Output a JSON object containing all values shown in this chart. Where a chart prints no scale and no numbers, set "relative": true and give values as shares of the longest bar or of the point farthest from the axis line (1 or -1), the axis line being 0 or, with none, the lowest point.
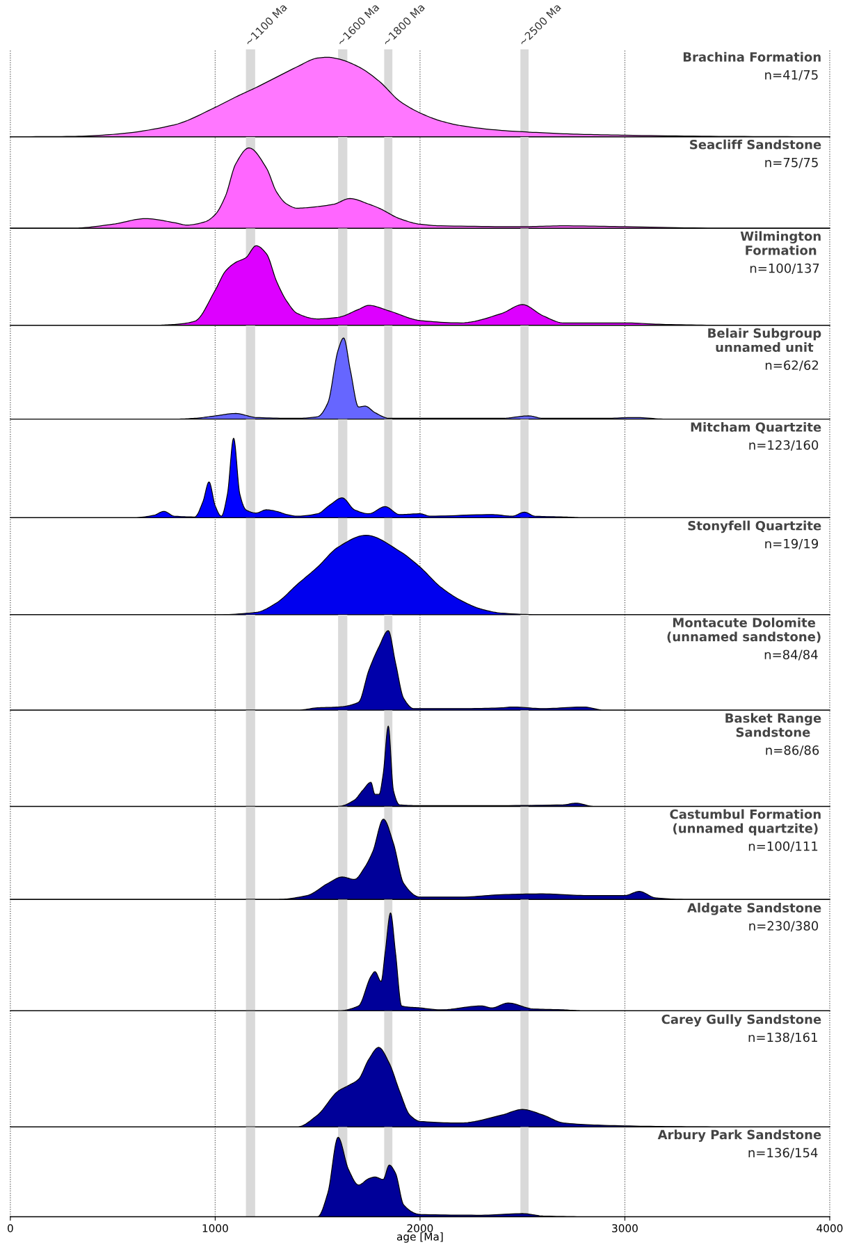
{
  "chart_data": [
    {
      "type": "area",
      "relative": true,
      "title": "Brachina Formation",
      "annotations": [
        "n=41/75"
      ],
      "color": "#ff77ff",
      "x": [
        0,
        300,
        500,
        800,
        1000,
        1100,
        1200,
        1300,
        1400,
        1500,
        1550,
        1600,
        1700,
        1800,
        1900,
        2000,
        2100,
        2200,
        2400,
        2600,
        2800,
        3000,
        3500,
        4000
      ],
      "values": [
        0,
        0.005,
        0.03,
        0.15,
        0.37,
        0.5,
        0.62,
        0.75,
        0.88,
        0.99,
        1.0,
        0.98,
        0.88,
        0.7,
        0.45,
        0.3,
        0.2,
        0.14,
        0.08,
        0.05,
        0.03,
        0.02,
        0.005,
        0
      ],
      "xlim": [
        0,
        4000
      ],
      "xticks": [
        0,
        1000,
        2000,
        3000,
        4000
      ],
      "tick_labels": false,
      "grid": "x",
      "bands": [
        {
          "axis": "x",
          "from": 1150,
          "to": 1195,
          "label": "~1100 Ma",
          "color": "#d9d9d9"
        },
        {
          "axis": "x",
          "from": 1600,
          "to": 1645,
          "label": "~1600 Ma",
          "color": "#d9d9d9"
        },
        {
          "axis": "x",
          "from": 1825,
          "to": 1865,
          "label": "~1800 Ma",
          "color": "#d9d9d9"
        },
        {
          "axis": "x",
          "from": 2490,
          "to": 2530,
          "label": "~2500 Ma",
          "color": "#d9d9d9"
        }
      ]
    },
    {
      "type": "area",
      "relative": true,
      "title": "Seacliff Sandstone",
      "annotations": [
        "n=75/75"
      ],
      "color": "#ff66ff",
      "x": [
        0,
        300,
        500,
        660,
        800,
        862,
        950,
        1000,
        1050,
        1100,
        1165,
        1250,
        1300,
        1350,
        1400,
        1500,
        1580,
        1658,
        1750,
        1800,
        1900,
        2000,
        2100,
        2500,
        2700,
        3000,
        3500,
        4000
      ],
      "values": [
        0,
        0.0,
        0.05,
        0.12,
        0.07,
        0.04,
        0.08,
        0.17,
        0.4,
        0.8,
        1.0,
        0.75,
        0.45,
        0.3,
        0.25,
        0.27,
        0.3,
        0.37,
        0.3,
        0.25,
        0.12,
        0.05,
        0.03,
        0.02,
        0.03,
        0.02,
        0.0,
        0
      ],
      "xlim": [
        0,
        4000
      ],
      "xticks": [
        0,
        1000,
        2000,
        3000,
        4000
      ],
      "tick_labels": false,
      "grid": "x",
      "bands": [
        {
          "axis": "x",
          "from": 1150,
          "to": 1195,
          "color": "#d9d9d9"
        },
        {
          "axis": "x",
          "from": 1600,
          "to": 1645,
          "color": "#d9d9d9"
        },
        {
          "axis": "x",
          "from": 1825,
          "to": 1865,
          "color": "#d9d9d9"
        },
        {
          "axis": "x",
          "from": 2490,
          "to": 2530,
          "color": "#d9d9d9"
        }
      ]
    },
    {
      "type": "area",
      "relative": true,
      "title": "Wilmington\nFormation",
      "annotations": [
        "n=100/137"
      ],
      "color": "#dd00ff",
      "x": [
        0,
        700,
        800,
        900,
        1000,
        1050,
        1100,
        1150,
        1200,
        1250,
        1300,
        1350,
        1400,
        1500,
        1600,
        1700,
        1750,
        1850,
        2000,
        2200,
        2400,
        2500,
        2600,
        2700,
        2900,
        3000,
        3200,
        3500,
        4000
      ],
      "values": [
        0,
        0,
        0.01,
        0.05,
        0.44,
        0.68,
        0.79,
        0.85,
        1.0,
        0.9,
        0.55,
        0.3,
        0.15,
        0.08,
        0.1,
        0.2,
        0.25,
        0.18,
        0.06,
        0.03,
        0.15,
        0.26,
        0.12,
        0.03,
        0.03,
        0.03,
        0.01,
        0,
        0
      ],
      "xlim": [
        0,
        4000
      ],
      "xticks": [
        0,
        1000,
        2000,
        3000,
        4000
      ],
      "tick_labels": false,
      "grid": "x",
      "bands": [
        {
          "axis": "x",
          "from": 1150,
          "to": 1195,
          "color": "#d9d9d9"
        },
        {
          "axis": "x",
          "from": 1600,
          "to": 1645,
          "color": "#d9d9d9"
        },
        {
          "axis": "x",
          "from": 1825,
          "to": 1865,
          "color": "#d9d9d9"
        },
        {
          "axis": "x",
          "from": 2490,
          "to": 2530,
          "color": "#d9d9d9"
        }
      ]
    },
    {
      "type": "area",
      "relative": true,
      "title": "Belair Subgroup\nunnamed unit",
      "annotations": [
        "n=62/62"
      ],
      "color": "#6666ff",
      "x": [
        0,
        800,
        900,
        1000,
        1100,
        1200,
        1400,
        1500,
        1550,
        1600,
        1627,
        1660,
        1700,
        1732,
        1780,
        1850,
        2000,
        2400,
        2530,
        2600,
        2900,
        3050,
        3200,
        4000
      ],
      "values": [
        0,
        0,
        0.01,
        0.04,
        0.07,
        0.02,
        0.01,
        0.03,
        0.2,
        0.85,
        1.0,
        0.6,
        0.15,
        0.16,
        0.08,
        0.01,
        0.01,
        0.01,
        0.04,
        0.01,
        0.01,
        0.02,
        0,
        0
      ],
      "xlim": [
        0,
        4000
      ],
      "xticks": [
        0,
        1000,
        2000,
        3000,
        4000
      ],
      "tick_labels": false,
      "grid": "x",
      "bands": [
        {
          "axis": "x",
          "from": 1150,
          "to": 1195,
          "color": "#d9d9d9"
        },
        {
          "axis": "x",
          "from": 1600,
          "to": 1645,
          "color": "#d9d9d9"
        },
        {
          "axis": "x",
          "from": 1825,
          "to": 1865,
          "color": "#d9d9d9"
        },
        {
          "axis": "x",
          "from": 2490,
          "to": 2530,
          "color": "#d9d9d9"
        }
      ]
    },
    {
      "type": "area",
      "relative": true,
      "title": "Mitcham Quartzite",
      "annotations": [
        "n=123/160"
      ],
      "color": "#0000ff",
      "x": [
        0,
        600,
        700,
        750,
        800,
        900,
        940,
        970,
        1000,
        1030,
        1060,
        1090,
        1120,
        1150,
        1200,
        1250,
        1300,
        1350,
        1400,
        1500,
        1560,
        1620,
        1680,
        1750,
        1830,
        1900,
        2000,
        2050,
        2350,
        2450,
        2510,
        2560,
        2700,
        2800,
        4000
      ],
      "values": [
        0,
        0,
        0.03,
        0.08,
        0.02,
        0.01,
        0.2,
        0.45,
        0.15,
        0.02,
        0.3,
        1.0,
        0.3,
        0.1,
        0.06,
        0.1,
        0.08,
        0.04,
        0.02,
        0.05,
        0.16,
        0.25,
        0.1,
        0.05,
        0.14,
        0.04,
        0.05,
        0.02,
        0.04,
        0.02,
        0.07,
        0.02,
        0.01,
        0,
        0
      ],
      "xlim": [
        0,
        4000
      ],
      "xticks": [
        0,
        1000,
        2000,
        3000,
        4000
      ],
      "tick_labels": false,
      "grid": "x",
      "bands": [
        {
          "axis": "x",
          "from": 1150,
          "to": 1195,
          "color": "#d9d9d9"
        },
        {
          "axis": "x",
          "from": 1600,
          "to": 1645,
          "color": "#d9d9d9"
        },
        {
          "axis": "x",
          "from": 1825,
          "to": 1865,
          "color": "#d9d9d9"
        },
        {
          "axis": "x",
          "from": 2490,
          "to": 2530,
          "color": "#d9d9d9"
        }
      ]
    },
    {
      "type": "area",
      "relative": true,
      "title": "Stonyfell Quartzite",
      "annotations": [
        "n=19/19"
      ],
      "color": "#0000ee",
      "x": [
        0,
        1000,
        1200,
        1300,
        1400,
        1500,
        1600,
        1736,
        1900,
        2000,
        2100,
        2200,
        2300,
        2400,
        2600,
        4000
      ],
      "values": [
        0,
        0,
        0.03,
        0.15,
        0.38,
        0.6,
        0.85,
        1.0,
        0.8,
        0.6,
        0.35,
        0.18,
        0.07,
        0.02,
        0,
        0
      ],
      "xlim": [
        0,
        4000
      ],
      "xticks": [
        0,
        1000,
        2000,
        3000,
        4000
      ],
      "tick_labels": false,
      "grid": "x",
      "bands": [
        {
          "axis": "x",
          "from": 1150,
          "to": 1195,
          "color": "#d9d9d9"
        },
        {
          "axis": "x",
          "from": 1600,
          "to": 1645,
          "color": "#d9d9d9"
        },
        {
          "axis": "x",
          "from": 1825,
          "to": 1865,
          "color": "#d9d9d9"
        },
        {
          "axis": "x",
          "from": 2490,
          "to": 2530,
          "color": "#d9d9d9"
        }
      ]
    },
    {
      "type": "area",
      "relative": true,
      "title": "Montacute Dolomite\n(unnamed sandstone)",
      "annotations": [
        "n=84/84"
      ],
      "color": "#0000aa",
      "x": [
        0,
        1400,
        1500,
        1600,
        1700,
        1750,
        1800,
        1845,
        1880,
        1920,
        1970,
        2200,
        2400,
        2450,
        2600,
        2800,
        2900,
        4000
      ],
      "values": [
        0,
        0,
        0.03,
        0.04,
        0.1,
        0.5,
        0.8,
        1.0,
        0.6,
        0.15,
        0.02,
        0.02,
        0.03,
        0.04,
        0.02,
        0.04,
        0,
        0
      ],
      "xlim": [
        0,
        4000
      ],
      "xticks": [
        0,
        1000,
        2000,
        3000,
        4000
      ],
      "tick_labels": false,
      "grid": "x",
      "bands": [
        {
          "axis": "x",
          "from": 1150,
          "to": 1195,
          "color": "#d9d9d9"
        },
        {
          "axis": "x",
          "from": 1600,
          "to": 1645,
          "color": "#d9d9d9"
        },
        {
          "axis": "x",
          "from": 1825,
          "to": 1865,
          "color": "#d9d9d9"
        },
        {
          "axis": "x",
          "from": 2490,
          "to": 2530,
          "color": "#d9d9d9"
        }
      ]
    },
    {
      "type": "area",
      "relative": true,
      "title": "Basket Range\nSandstone",
      "annotations": [
        "n=86/86"
      ],
      "color": "#000099",
      "x": [
        0,
        1600,
        1680,
        1720,
        1760,
        1780,
        1800,
        1820,
        1845,
        1870,
        1900,
        2000,
        2300,
        2700,
        2760,
        2850,
        4000
      ],
      "values": [
        0,
        0,
        0.08,
        0.2,
        0.3,
        0.15,
        0.15,
        0.4,
        1.0,
        0.2,
        0.02,
        0.01,
        0.01,
        0.02,
        0.04,
        0,
        0
      ],
      "xlim": [
        0,
        4000
      ],
      "xticks": [
        0,
        1000,
        2000,
        3000,
        4000
      ],
      "tick_labels": false,
      "grid": "x",
      "bands": [
        {
          "axis": "x",
          "from": 1150,
          "to": 1195,
          "color": "#d9d9d9"
        },
        {
          "axis": "x",
          "from": 1600,
          "to": 1645,
          "color": "#d9d9d9"
        },
        {
          "axis": "x",
          "from": 1825,
          "to": 1865,
          "color": "#d9d9d9"
        },
        {
          "axis": "x",
          "from": 2490,
          "to": 2530,
          "color": "#d9d9d9"
        }
      ]
    },
    {
      "type": "area",
      "relative": true,
      "title": "Castumbul Formation\n(unnamed quartzite)",
      "annotations": [
        "n=100/111"
      ],
      "color": "#000099",
      "x": [
        0,
        1300,
        1450,
        1550,
        1620,
        1680,
        1730,
        1770,
        1821,
        1870,
        1920,
        2000,
        2200,
        2400,
        2600,
        2800,
        3000,
        3070,
        3150,
        3300,
        4000
      ],
      "values": [
        0,
        0,
        0.05,
        0.2,
        0.28,
        0.25,
        0.4,
        0.6,
        1.0,
        0.7,
        0.2,
        0.03,
        0.03,
        0.06,
        0.07,
        0.05,
        0.05,
        0.1,
        0.02,
        0,
        0
      ],
      "xlim": [
        0,
        4000
      ],
      "xticks": [
        0,
        1000,
        2000,
        3000,
        4000
      ],
      "tick_labels": false,
      "grid": "x",
      "bands": [
        {
          "axis": "x",
          "from": 1150,
          "to": 1195,
          "color": "#d9d9d9"
        },
        {
          "axis": "x",
          "from": 1600,
          "to": 1645,
          "color": "#d9d9d9"
        },
        {
          "axis": "x",
          "from": 1825,
          "to": 1865,
          "color": "#d9d9d9"
        },
        {
          "axis": "x",
          "from": 2490,
          "to": 2530,
          "color": "#d9d9d9"
        }
      ]
    },
    {
      "type": "area",
      "relative": true,
      "title": "Aldgate Sandstone",
      "annotations": [
        "n=230/380"
      ],
      "color": "#000099",
      "x": [
        0,
        1600,
        1700,
        1760,
        1780,
        1810,
        1830,
        1856,
        1880,
        1910,
        2000,
        2100,
        2300,
        2350,
        2430,
        2550,
        2700,
        2800,
        4000
      ],
      "values": [
        0,
        0,
        0.05,
        0.35,
        0.4,
        0.3,
        0.6,
        1.0,
        0.6,
        0.05,
        0.03,
        0.01,
        0.05,
        0.03,
        0.08,
        0.02,
        0.01,
        0,
        0
      ],
      "xlim": [
        0,
        4000
      ],
      "xticks": [
        0,
        1000,
        2000,
        3000,
        4000
      ],
      "tick_labels": false,
      "grid": "x",
      "bands": [
        {
          "axis": "x",
          "from": 1150,
          "to": 1195,
          "color": "#d9d9d9"
        },
        {
          "axis": "x",
          "from": 1600,
          "to": 1645,
          "color": "#d9d9d9"
        },
        {
          "axis": "x",
          "from": 1825,
          "to": 1865,
          "color": "#d9d9d9"
        },
        {
          "axis": "x",
          "from": 2490,
          "to": 2530,
          "color": "#d9d9d9"
        }
      ]
    },
    {
      "type": "area",
      "relative": true,
      "title": "Carey Gully Sandstone",
      "annotations": [
        "n=138/161"
      ],
      "color": "#000099",
      "x": [
        0,
        1400,
        1500,
        1600,
        1650,
        1700,
        1750,
        1798,
        1850,
        1900,
        1950,
        2000,
        2200,
        2400,
        2500,
        2600,
        2700,
        2900,
        3200,
        3500,
        4000
      ],
      "values": [
        0,
        0,
        0.15,
        0.45,
        0.52,
        0.6,
        0.85,
        1.0,
        0.8,
        0.45,
        0.15,
        0.07,
        0.05,
        0.15,
        0.22,
        0.15,
        0.05,
        0.02,
        0.005,
        0,
        0
      ],
      "xlim": [
        0,
        4000
      ],
      "xticks": [
        0,
        1000,
        2000,
        3000,
        4000
      ],
      "tick_labels": false,
      "grid": "x",
      "bands": [
        {
          "axis": "x",
          "from": 1150,
          "to": 1195,
          "color": "#d9d9d9"
        },
        {
          "axis": "x",
          "from": 1600,
          "to": 1645,
          "color": "#d9d9d9"
        },
        {
          "axis": "x",
          "from": 1825,
          "to": 1865,
          "color": "#d9d9d9"
        },
        {
          "axis": "x",
          "from": 2490,
          "to": 2530,
          "color": "#d9d9d9"
        }
      ]
    },
    {
      "type": "area",
      "relative": true,
      "title": "Arbury Park Sandstone",
      "annotations": [
        "n=136/154"
      ],
      "color": "#000099",
      "xlabel": "age [Ma]",
      "x": [
        0,
        1500,
        1550,
        1600,
        1650,
        1700,
        1750,
        1780,
        1820,
        1850,
        1880,
        1920,
        2000,
        2300,
        2500,
        2600,
        2800,
        4000
      ],
      "values": [
        0,
        0,
        0.3,
        1.0,
        0.6,
        0.4,
        0.48,
        0.5,
        0.47,
        0.65,
        0.55,
        0.15,
        0.03,
        0.02,
        0.04,
        0.01,
        0,
        0
      ],
      "xlim": [
        0,
        4000
      ],
      "xticks": [
        0,
        1000,
        2000,
        3000,
        4000
      ],
      "tick_labels": "x",
      "grid": "x",
      "bands": [
        {
          "axis": "x",
          "from": 1150,
          "to": 1195,
          "color": "#d9d9d9"
        },
        {
          "axis": "x",
          "from": 1600,
          "to": 1645,
          "color": "#d9d9d9"
        },
        {
          "axis": "x",
          "from": 1825,
          "to": 1865,
          "color": "#d9d9d9"
        },
        {
          "axis": "x",
          "from": 2490,
          "to": 2530,
          "color": "#d9d9d9"
        }
      ]
    }
  ]
}
